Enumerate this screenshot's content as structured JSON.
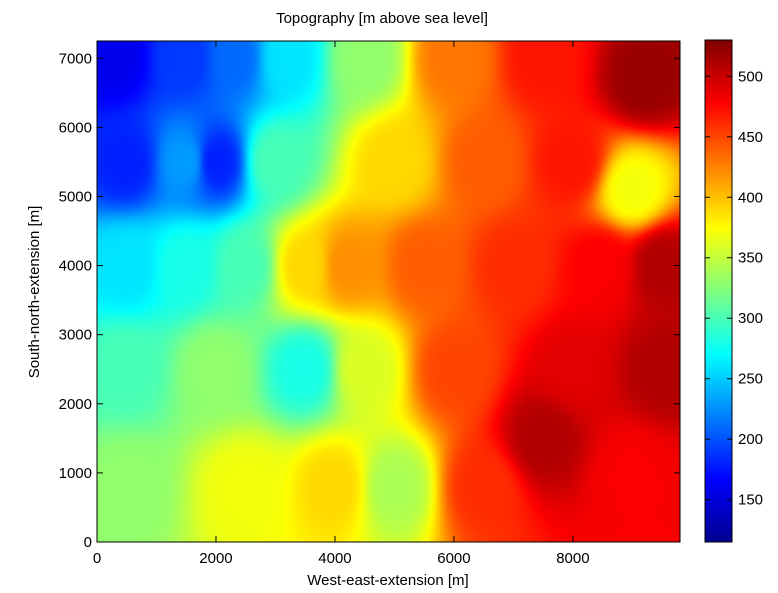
{
  "chart_data": {
    "type": "heatmap",
    "title": "Topography [m above sea level]",
    "xlabel": "West-east-extension [m]",
    "ylabel": "South-north-extension [m]",
    "xlim": [
      0,
      9800
    ],
    "ylim": [
      0,
      7250
    ],
    "xticks": [
      0,
      2000,
      4000,
      6000,
      8000
    ],
    "xtick_labels": [
      "0",
      "2000",
      "4000",
      "6000",
      "8000"
    ],
    "yticks": [
      0,
      1000,
      2000,
      3000,
      4000,
      5000,
      6000,
      7000
    ],
    "ytick_labels": [
      "0",
      "1000",
      "2000",
      "3000",
      "4000",
      "5000",
      "6000",
      "7000"
    ],
    "colorbar": {
      "colormap": "jet",
      "range": [
        115,
        530
      ],
      "ticks": [
        150,
        200,
        250,
        300,
        350,
        400,
        450,
        500
      ],
      "tick_labels": [
        "150",
        "200",
        "250",
        "300",
        "350",
        "400",
        "450",
        "500"
      ]
    },
    "grid": false,
    "elevation_samples": {
      "description_units": "x [m], y [m], elevation [m]",
      "points": [
        [
          300,
          7000,
          160
        ],
        [
          1500,
          7000,
          190
        ],
        [
          2300,
          7000,
          210
        ],
        [
          3200,
          7000,
          260
        ],
        [
          4500,
          7000,
          330
        ],
        [
          6000,
          7000,
          430
        ],
        [
          7500,
          7000,
          470
        ],
        [
          9200,
          6700,
          520
        ],
        [
          500,
          5500,
          180
        ],
        [
          1500,
          5500,
          230
        ],
        [
          2000,
          5500,
          180
        ],
        [
          3000,
          5500,
          300
        ],
        [
          5000,
          5500,
          390
        ],
        [
          6500,
          5500,
          440
        ],
        [
          8000,
          5500,
          470
        ],
        [
          9000,
          5100,
          370
        ],
        [
          9500,
          4000,
          510
        ],
        [
          500,
          4000,
          260
        ],
        [
          1500,
          4000,
          280
        ],
        [
          2500,
          4000,
          300
        ],
        [
          3500,
          4000,
          390
        ],
        [
          4200,
          4000,
          420
        ],
        [
          5500,
          4000,
          440
        ],
        [
          7000,
          4000,
          460
        ],
        [
          8500,
          4000,
          480
        ],
        [
          500,
          2500,
          300
        ],
        [
          2000,
          2500,
          330
        ],
        [
          3500,
          2500,
          280
        ],
        [
          4500,
          2500,
          360
        ],
        [
          6000,
          2500,
          450
        ],
        [
          8000,
          2500,
          490
        ],
        [
          9500,
          2500,
          510
        ],
        [
          500,
          800,
          330
        ],
        [
          2500,
          800,
          370
        ],
        [
          4000,
          800,
          390
        ],
        [
          5000,
          800,
          340
        ],
        [
          6500,
          800,
          460
        ],
        [
          7500,
          1500,
          510
        ],
        [
          9000,
          1000,
          480
        ]
      ]
    }
  },
  "colors": {
    "frame": "#000000",
    "background": "#ffffff"
  }
}
